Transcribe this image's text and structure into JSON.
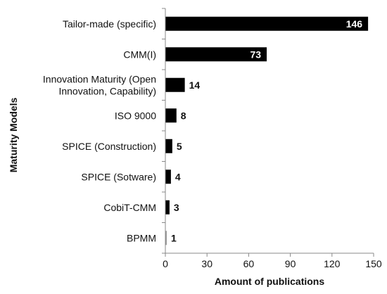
{
  "chart_data": {
    "type": "bar",
    "orientation": "horizontal",
    "categories": [
      "Tailor-made (specific)",
      "CMM(I)",
      "Innovation Maturity (Open Innovation, Capability)",
      "ISO 9000",
      "SPICE (Construction)",
      "SPICE (Sotware)",
      "CobiT-CMM",
      "BPMM"
    ],
    "category_lines": [
      [
        "Tailor-made (specific)"
      ],
      [
        "CMM(I)"
      ],
      [
        "Innovation Maturity (Open",
        "Innovation, Capability)"
      ],
      [
        "ISO 9000"
      ],
      [
        "SPICE (Construction)"
      ],
      [
        "SPICE (Sotware)"
      ],
      [
        "CobiT-CMM"
      ],
      [
        "BPMM"
      ]
    ],
    "values": [
      146,
      73,
      14,
      8,
      5,
      4,
      3,
      1
    ],
    "xlabel": "Amount of publications",
    "ylabel": "Maturity Models",
    "xlim": [
      0,
      150
    ],
    "xticks": [
      0,
      30,
      60,
      90,
      120,
      150
    ],
    "grid": false,
    "legend": "none",
    "colors": {
      "bar": "#000000",
      "bar_small": "#9a9a9a",
      "axis": "#888888",
      "label_inside": "#ffffff",
      "label_outside": "#111111"
    }
  }
}
